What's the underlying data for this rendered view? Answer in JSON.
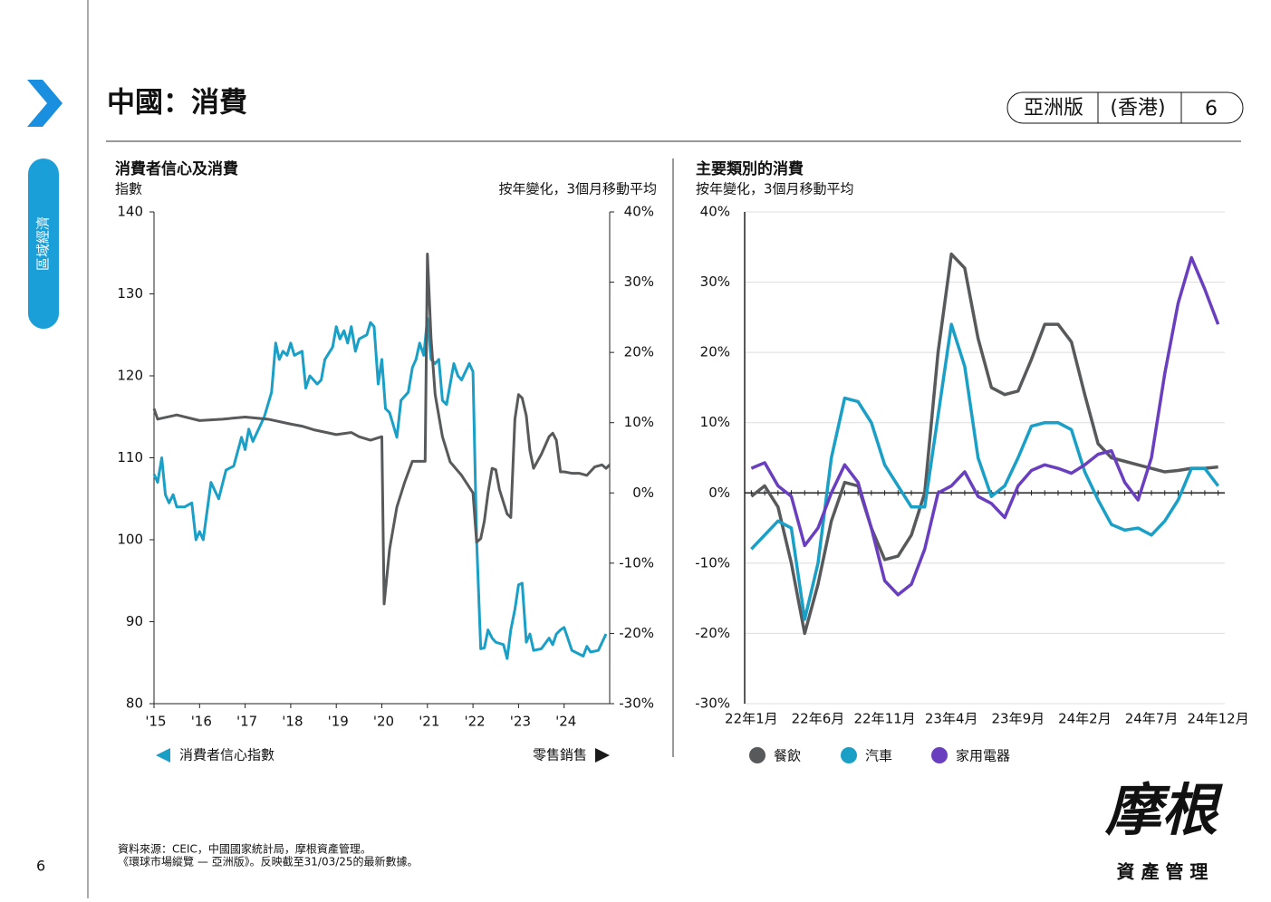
{
  "header": {
    "title": "中國：消費",
    "badge": [
      "亞洲版",
      "(香港)",
      "6"
    ]
  },
  "sidebar": "區域經濟",
  "page_number": "6",
  "footer": [
    "資料來源：CEIC，中國國家統計局，摩根資產管理。",
    "《環球市場縱覽 — 亞洲版》。反映截至31/03/25的最新數據。"
  ],
  "logo": {
    "name": "摩根",
    "sub": "資 產 管 理"
  },
  "chart_data": [
    {
      "type": "line",
      "title": "消費者信心及消費",
      "ylabel": "指數",
      "y2label": "按年變化，3個月移動平均",
      "xlim": [
        2015,
        2025
      ],
      "xticks": [
        {
          "value": 2015,
          "label": "'15"
        },
        {
          "value": 2016,
          "label": "'16"
        },
        {
          "value": 2017,
          "label": "'17"
        },
        {
          "value": 2018,
          "label": "'18"
        },
        {
          "value": 2019,
          "label": "'19"
        },
        {
          "value": 2020,
          "label": "'20"
        },
        {
          "value": 2021,
          "label": "'21"
        },
        {
          "value": 2022,
          "label": "'22"
        },
        {
          "value": 2023,
          "label": "'23"
        },
        {
          "value": 2024,
          "label": "'24"
        }
      ],
      "ylim": [
        80,
        140
      ],
      "yticks": [
        80,
        90,
        100,
        110,
        120,
        130,
        140
      ],
      "y2lim": [
        -30,
        40
      ],
      "y2ticks": [
        {
          "value": -30,
          "label": "-30%"
        },
        {
          "value": -20,
          "label": "-20%"
        },
        {
          "value": -10,
          "label": "-10%"
        },
        {
          "value": 0,
          "label": "0%"
        },
        {
          "value": 10,
          "label": "10%"
        },
        {
          "value": 20,
          "label": "20%"
        },
        {
          "value": 30,
          "label": "30%"
        },
        {
          "value": 40,
          "label": "40%"
        }
      ],
      "series": [
        {
          "name": "消費者信心指數",
          "color": "#1a9fc6",
          "axis": "y",
          "x": [
            2015,
            2015.08,
            2015.17,
            2015.25,
            2015.33,
            2015.42,
            2015.5,
            2015.67,
            2015.83,
            2015.92,
            2016,
            2016.08,
            2016.25,
            2016.42,
            2016.58,
            2016.75,
            2016.92,
            2017,
            2017.08,
            2017.17,
            2017.42,
            2017.58,
            2017.67,
            2017.75,
            2017.83,
            2017.92,
            2018,
            2018.08,
            2018.25,
            2018.33,
            2018.42,
            2018.58,
            2018.67,
            2018.75,
            2018.92,
            2019,
            2019.08,
            2019.17,
            2019.25,
            2019.33,
            2019.42,
            2019.5,
            2019.67,
            2019.75,
            2019.83,
            2019.92,
            2020,
            2020.08,
            2020.17,
            2020.33,
            2020.42,
            2020.58,
            2020.67,
            2020.75,
            2020.83,
            2020.92,
            2021,
            2021.08,
            2021.17,
            2021.25,
            2021.33,
            2021.42,
            2021.58,
            2021.67,
            2021.75,
            2021.92,
            2022,
            2022.08,
            2022.17,
            2022.25,
            2022.33,
            2022.42,
            2022.5,
            2022.67,
            2022.75,
            2022.83,
            2022.92,
            2023,
            2023.08,
            2023.17,
            2023.25,
            2023.33,
            2023.5,
            2023.67,
            2023.75,
            2023.83,
            2023.92,
            2024,
            2024.08,
            2024.17,
            2024.42,
            2024.5,
            2024.58,
            2024.75,
            2024.92
          ],
          "values": [
            108,
            107,
            110,
            105.5,
            104.5,
            105.5,
            104,
            104,
            104.5,
            100,
            101,
            100,
            107,
            105,
            108.5,
            109,
            112.5,
            111,
            113.5,
            112,
            115,
            118,
            124,
            122,
            123,
            122.5,
            124,
            122.5,
            123,
            118.5,
            120,
            119,
            119.5,
            122,
            123.5,
            126,
            124.5,
            125.5,
            124,
            126,
            123,
            124.5,
            125,
            126.5,
            126,
            119,
            122,
            116,
            115.5,
            112.5,
            117,
            118,
            121,
            122,
            124,
            122.5,
            127,
            122,
            121.5,
            122,
            117,
            116.5,
            121.5,
            120,
            119.5,
            121.5,
            120.5,
            100,
            86.7,
            86.8,
            89,
            88,
            87.5,
            87.2,
            85.5,
            89,
            91.5,
            94.5,
            94.7,
            87.5,
            88.5,
            86.5,
            86.7,
            88,
            87.2,
            88.5,
            89,
            89.3,
            88,
            86.5,
            85.8,
            87,
            86.3,
            86.5,
            88.5
          ]
        },
        {
          "name": "零售銷售",
          "color": "#58595b",
          "axis": "y2",
          "x": [
            2015,
            2015.08,
            2015.5,
            2016,
            2016.5,
            2017,
            2017.5,
            2018,
            2018.25,
            2018.5,
            2019,
            2019.33,
            2019.5,
            2019.75,
            2020,
            2020.05,
            2020.17,
            2020.33,
            2020.5,
            2020.67,
            2020.83,
            2020.95,
            2021,
            2021.08,
            2021.17,
            2021.33,
            2021.5,
            2021.75,
            2022,
            2022.08,
            2022.17,
            2022.25,
            2022.33,
            2022.42,
            2022.5,
            2022.58,
            2022.75,
            2022.83,
            2022.92,
            2023,
            2023.08,
            2023.17,
            2023.25,
            2023.33,
            2023.5,
            2023.67,
            2023.75,
            2023.83,
            2023.92,
            2024,
            2024.17,
            2024.33,
            2024.5,
            2024.67,
            2024.83,
            2024.92,
            2025
          ],
          "values": [
            12,
            10.5,
            11.1,
            10.3,
            10.5,
            10.8,
            10.5,
            9.8,
            9.5,
            9,
            8.3,
            8.6,
            8,
            7.5,
            8,
            -15.8,
            -8,
            -2,
            1.5,
            4.5,
            4.5,
            4.5,
            34,
            22,
            14,
            8,
            4.4,
            2.5,
            0,
            -7,
            -6.5,
            -4,
            0,
            3.5,
            3.3,
            0.5,
            -3,
            -3.5,
            10.5,
            14,
            13.5,
            11,
            6,
            3.5,
            5.5,
            8,
            8.5,
            7.5,
            3,
            3,
            2.8,
            2.8,
            2.5,
            3.7,
            4,
            3.5,
            4
          ]
        }
      ]
    },
    {
      "type": "line",
      "title": "主要類別的消費",
      "subtitle": "按年變化，3個月移動平均",
      "grid": true,
      "categories": [
        "22年1月",
        null,
        null,
        null,
        null,
        "22年6月",
        null,
        null,
        null,
        null,
        "22年11月",
        null,
        null,
        null,
        null,
        "23年4月",
        null,
        null,
        null,
        null,
        "23年9月",
        null,
        null,
        null,
        null,
        "24年2月",
        null,
        null,
        null,
        null,
        "24年7月",
        null,
        null,
        null,
        null,
        "24年12月"
      ],
      "ylim": [
        -30,
        40
      ],
      "yticks": [
        {
          "value": -30,
          "label": "-30%"
        },
        {
          "value": -20,
          "label": "-20%"
        },
        {
          "value": -10,
          "label": "-10%"
        },
        {
          "value": 0,
          "label": "0%"
        },
        {
          "value": 10,
          "label": "10%"
        },
        {
          "value": 20,
          "label": "20%"
        },
        {
          "value": 30,
          "label": "30%"
        },
        {
          "value": 40,
          "label": "40%"
        }
      ],
      "series": [
        {
          "name": "餐飲",
          "color": "#58595b",
          "values": [
            -0.5,
            1,
            -2,
            -10,
            -20,
            -13,
            -4,
            1.5,
            1,
            -5,
            -9.5,
            -9,
            -6,
            0,
            20,
            34,
            32,
            22,
            15,
            14,
            14.5,
            19,
            24,
            24,
            21.5,
            14,
            7,
            5,
            4.5,
            4,
            3.5,
            3,
            3.2,
            3.5,
            3.5,
            3.7
          ]
        },
        {
          "name": "汽車",
          "color": "#1a9fc6",
          "values": [
            -8,
            -6,
            -4,
            -5,
            -18,
            -10,
            5,
            13.5,
            13,
            10,
            4,
            1,
            -2,
            -2,
            11,
            24,
            18,
            5,
            -0.5,
            1,
            5,
            9.5,
            10,
            10,
            9,
            3,
            -1,
            -4.5,
            -5.3,
            -5,
            -6,
            -4,
            -1,
            3.5,
            3.5,
            1
          ]
        },
        {
          "name": "家用電器",
          "color": "#6a3fbf",
          "values": [
            3.5,
            4.3,
            1,
            -0.5,
            -7.5,
            -5,
            0,
            4,
            1.5,
            -5,
            -12.5,
            -14.5,
            -13,
            -8,
            0,
            1,
            3,
            -0.5,
            -1.5,
            -3.5,
            1,
            3.2,
            4,
            3.5,
            2.8,
            4,
            5.5,
            6,
            1.5,
            -1,
            5,
            17,
            27,
            33.5,
            29,
            24
          ]
        }
      ]
    }
  ]
}
